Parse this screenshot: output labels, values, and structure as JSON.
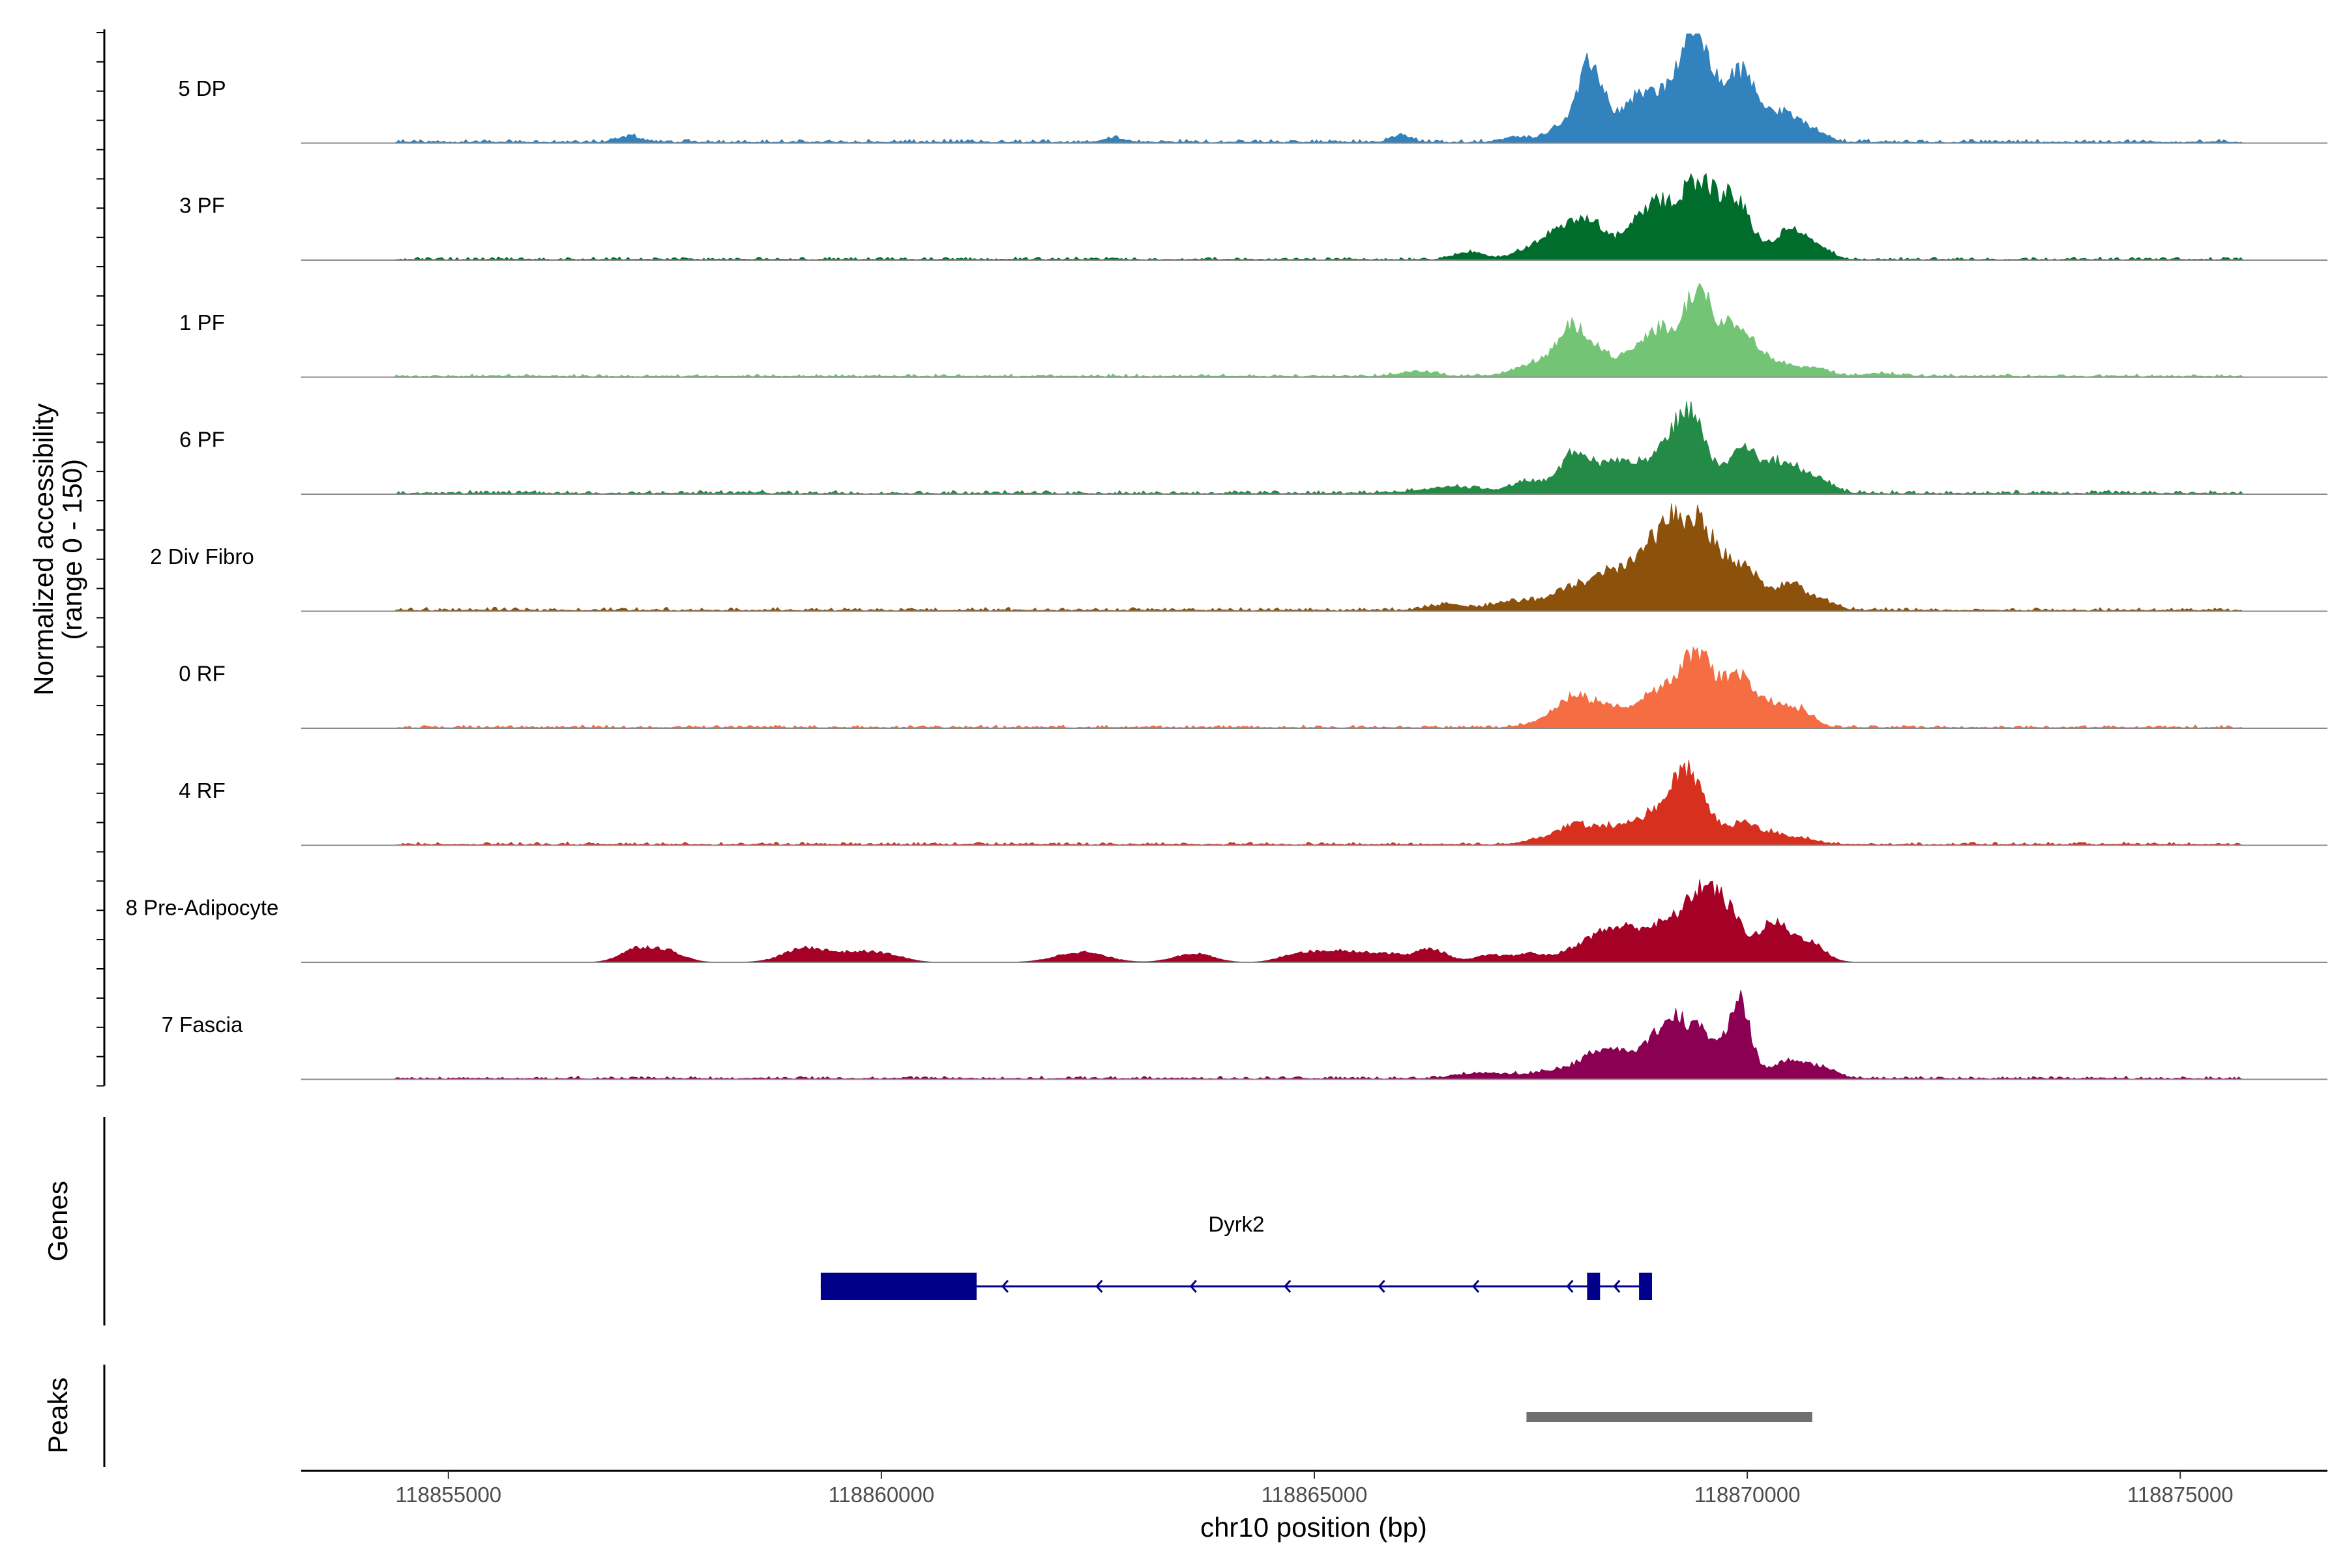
{
  "chart_data": {
    "type": "area",
    "title": "",
    "xlabel": "chr10 position (bp)",
    "ylabel": "Normalized accessibility\n(range 0 - 150)",
    "ylim": [
      0,
      150
    ],
    "xlim": [
      118853300,
      118876700
    ],
    "x_ticks": [
      118855000,
      118860000,
      118865000,
      118870000,
      118875000
    ],
    "x_tick_labels": [
      "118855000",
      "118860000",
      "118865000",
      "118870000",
      "118875000"
    ],
    "tracks": [
      {
        "name": "5 DP",
        "color": "#3182bd",
        "background": {
          "start": 118854400,
          "end": 118875700,
          "level": 5
        },
        "peaks": [
          [
            118857100,
            8,
            120
          ],
          [
            118862700,
            6,
            120
          ],
          [
            118866000,
            9,
            120
          ],
          [
            118867300,
            6,
            150
          ],
          [
            118868000,
            30,
            250
          ],
          [
            118868200,
            82,
            130
          ],
          [
            118868600,
            32,
            200
          ],
          [
            118868800,
            38,
            150
          ],
          [
            118869100,
            52,
            160
          ],
          [
            118869400,
            100,
            150
          ],
          [
            118869500,
            50,
            240
          ],
          [
            118869900,
            68,
            160
          ],
          [
            118870150,
            38,
            200
          ],
          [
            118870500,
            28,
            160
          ],
          [
            118870800,
            12,
            140
          ]
        ]
      },
      {
        "name": "3 PF",
        "color": "#006d2c",
        "background": {
          "start": 118854400,
          "end": 118875700,
          "level": 4
        },
        "peaks": [
          [
            118866800,
            10,
            160
          ],
          [
            118867600,
            14,
            250
          ],
          [
            118868000,
            40,
            260
          ],
          [
            118868250,
            24,
            160
          ],
          [
            118868700,
            40,
            160
          ],
          [
            118869000,
            66,
            160
          ],
          [
            118869350,
            80,
            160
          ],
          [
            118869600,
            62,
            160
          ],
          [
            118869900,
            70,
            160
          ],
          [
            118870500,
            42,
            180
          ],
          [
            118870850,
            13,
            120
          ]
        ]
      },
      {
        "name": "1 PF",
        "color": "#74c476",
        "background": {
          "start": 118854400,
          "end": 118875700,
          "level": 4
        },
        "peaks": [
          [
            118866200,
            7,
            200
          ],
          [
            118867700,
            22,
            300
          ],
          [
            118868000,
            48,
            160
          ],
          [
            118868300,
            26,
            200
          ],
          [
            118868700,
            22,
            160
          ],
          [
            118869000,
            60,
            170
          ],
          [
            118869400,
            98,
            150
          ],
          [
            118869650,
            48,
            170
          ],
          [
            118869950,
            58,
            160
          ],
          [
            118870350,
            20,
            180
          ],
          [
            118870800,
            11,
            150
          ],
          [
            118871500,
            4,
            200
          ]
        ]
      },
      {
        "name": "6 PF",
        "color": "#238b45",
        "background": {
          "start": 118854400,
          "end": 118875700,
          "level": 5
        },
        "peaks": [
          [
            118866600,
            9,
            350
          ],
          [
            118867500,
            16,
            200
          ],
          [
            118868000,
            52,
            160
          ],
          [
            118868400,
            36,
            180
          ],
          [
            118868750,
            30,
            200
          ],
          [
            118869150,
            62,
            180
          ],
          [
            118869400,
            78,
            170
          ],
          [
            118869950,
            58,
            170
          ],
          [
            118870400,
            42,
            180
          ],
          [
            118870800,
            20,
            160
          ]
        ]
      },
      {
        "name": "2 Div Fibro",
        "color": "#8c510a",
        "background": {
          "start": 118854400,
          "end": 118875700,
          "level": 5
        },
        "peaks": [
          [
            118866500,
            8,
            200
          ],
          [
            118867300,
            12,
            250
          ],
          [
            118868000,
            32,
            250
          ],
          [
            118868400,
            38,
            170
          ],
          [
            118868750,
            52,
            180
          ],
          [
            118869000,
            62,
            170
          ],
          [
            118869200,
            80,
            140
          ],
          [
            118869450,
            92,
            130
          ],
          [
            118869700,
            56,
            160
          ],
          [
            118870000,
            48,
            170
          ],
          [
            118870500,
            36,
            180
          ],
          [
            118870900,
            10,
            150
          ]
        ]
      },
      {
        "name": "0 RF",
        "color": "#f46d43",
        "background": {
          "start": 118854400,
          "end": 118875700,
          "level": 4
        },
        "peaks": [
          [
            118867700,
            10,
            200
          ],
          [
            118868000,
            38,
            170
          ],
          [
            118868350,
            26,
            170
          ],
          [
            118868750,
            26,
            170
          ],
          [
            118869100,
            52,
            180
          ],
          [
            118869400,
            76,
            150
          ],
          [
            118869650,
            40,
            170
          ],
          [
            118869950,
            58,
            170
          ],
          [
            118870350,
            28,
            170
          ],
          [
            118870650,
            18,
            140
          ]
        ]
      },
      {
        "name": "4 RF",
        "color": "#d7301f",
        "background": {
          "start": 118854400,
          "end": 118875700,
          "level": 4
        },
        "peaks": [
          [
            118867600,
            6,
            200
          ],
          [
            118868000,
            26,
            180
          ],
          [
            118868400,
            20,
            170
          ],
          [
            118868750,
            22,
            180
          ],
          [
            118869000,
            28,
            170
          ],
          [
            118869250,
            68,
            160
          ],
          [
            118869450,
            46,
            170
          ],
          [
            118869950,
            28,
            180
          ],
          [
            118870350,
            12,
            180
          ],
          [
            118870700,
            6,
            150
          ]
        ]
      },
      {
        "name": "8 Pre-Adipocyte",
        "color": "#a50026",
        "background": {
          "start": 118854400,
          "end": 118875700,
          "level": 0
        },
        "peaks": [
          [
            118857150,
            16,
            180
          ],
          [
            118857500,
            16,
            200
          ],
          [
            118859150,
            20,
            260
          ],
          [
            118859700,
            10,
            200
          ],
          [
            118860050,
            10,
            220
          ],
          [
            118862300,
            14,
            280
          ],
          [
            118863600,
            12,
            220
          ],
          [
            118864800,
            10,
            200
          ],
          [
            118865300,
            16,
            280
          ],
          [
            118865850,
            10,
            200
          ],
          [
            118866350,
            18,
            180
          ],
          [
            118867050,
            10,
            180
          ],
          [
            118867500,
            12,
            160
          ],
          [
            118867900,
            8,
            150
          ],
          [
            118868200,
            22,
            200
          ],
          [
            118868500,
            30,
            220
          ],
          [
            118868850,
            32,
            240
          ],
          [
            118869200,
            40,
            200
          ],
          [
            118869500,
            80,
            170
          ],
          [
            118869800,
            58,
            170
          ],
          [
            118870300,
            52,
            170
          ],
          [
            118870700,
            28,
            180
          ]
        ]
      },
      {
        "name": "7 Fascia",
        "color": "#8c0053",
        "background": {
          "start": 118854400,
          "end": 118875700,
          "level": 4
        },
        "peaks": [
          [
            118867000,
            8,
            300
          ],
          [
            118867800,
            10,
            250
          ],
          [
            118868300,
            34,
            220
          ],
          [
            118868700,
            28,
            200
          ],
          [
            118869000,
            36,
            160
          ],
          [
            118869200,
            62,
            150
          ],
          [
            118869500,
            56,
            140
          ],
          [
            118869900,
            108,
            130
          ],
          [
            118870500,
            26,
            200
          ],
          [
            118870900,
            12,
            150
          ]
        ]
      }
    ],
    "genes": [
      {
        "name": "Dyrk2",
        "strand": "-",
        "color": "#00008b",
        "start": 118859300,
        "end": 118868900,
        "exons": [
          [
            118859300,
            118861100
          ],
          [
            118868150,
            118868300
          ],
          [
            118868750,
            118868900
          ]
        ]
      }
    ],
    "peaks_track": {
      "label": "Peaks",
      "color": "#707070",
      "regions": [
        [
          118867450,
          118870750
        ]
      ]
    },
    "genes_track_label": "Genes"
  }
}
